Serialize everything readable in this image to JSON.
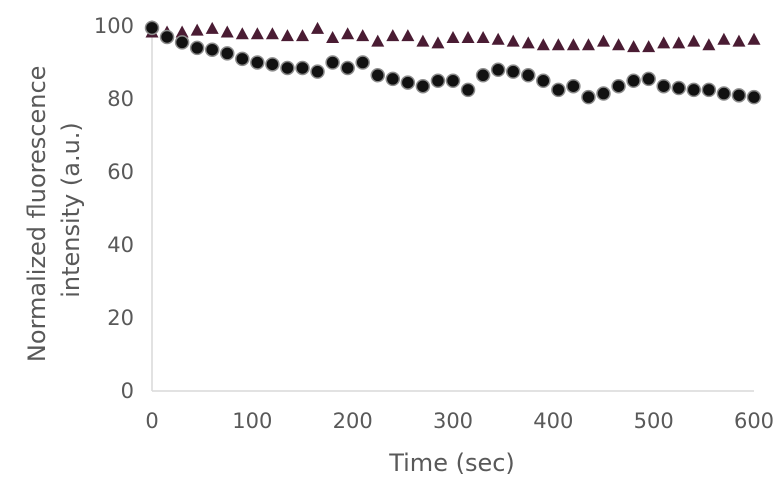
{
  "chart_data": {
    "type": "scatter",
    "xlabel": "Time (sec)",
    "ylabel_lines": [
      "Normalized fluorescence",
      "intensity (a.u.)"
    ],
    "xlim": [
      0,
      600
    ],
    "ylim": [
      0,
      100
    ],
    "xticks": [
      0,
      100,
      200,
      300,
      400,
      500,
      600
    ],
    "yticks": [
      0,
      20,
      40,
      60,
      80,
      100
    ],
    "grid": false,
    "legend": "none",
    "series": [
      {
        "marker": "triangle",
        "color": "#4a1c33",
        "x": [
          0,
          15,
          30,
          45,
          60,
          75,
          90,
          105,
          120,
          135,
          150,
          165,
          180,
          195,
          210,
          225,
          240,
          255,
          270,
          285,
          300,
          315,
          330,
          345,
          360,
          375,
          390,
          405,
          420,
          435,
          450,
          465,
          480,
          495,
          510,
          525,
          540,
          555,
          570,
          585,
          600
        ],
        "y": [
          98.5,
          98.5,
          98.5,
          99,
          99.5,
          98.5,
          98,
          98,
          98,
          97.5,
          97.5,
          99.5,
          97,
          98,
          97.5,
          96,
          97.5,
          97.5,
          96,
          95.5,
          97,
          97,
          97,
          96.5,
          96,
          95.5,
          95,
          95,
          95,
          95,
          96,
          95,
          94.5,
          94.5,
          95.5,
          95.5,
          96,
          95,
          96.5,
          96,
          96.5
        ]
      },
      {
        "marker": "circle",
        "color": "#111111",
        "x": [
          0,
          15,
          30,
          45,
          60,
          75,
          90,
          105,
          120,
          135,
          150,
          165,
          180,
          195,
          210,
          225,
          240,
          255,
          270,
          285,
          300,
          315,
          330,
          345,
          360,
          375,
          390,
          405,
          420,
          435,
          450,
          465,
          480,
          495,
          510,
          525,
          540,
          555,
          570,
          585,
          600
        ],
        "y": [
          99.5,
          97,
          95.5,
          94,
          93.5,
          92.5,
          91,
          90,
          89.5,
          88.5,
          88.5,
          87.5,
          90,
          88.5,
          90,
          86.5,
          85.5,
          84.5,
          83.5,
          85,
          85,
          82.5,
          86.5,
          88,
          87.5,
          86.5,
          85,
          82.5,
          83.5,
          80.5,
          81.5,
          83.5,
          85,
          85.5,
          83.5,
          83,
          82.5,
          82.5,
          81.5,
          81,
          80.5
        ]
      }
    ]
  }
}
